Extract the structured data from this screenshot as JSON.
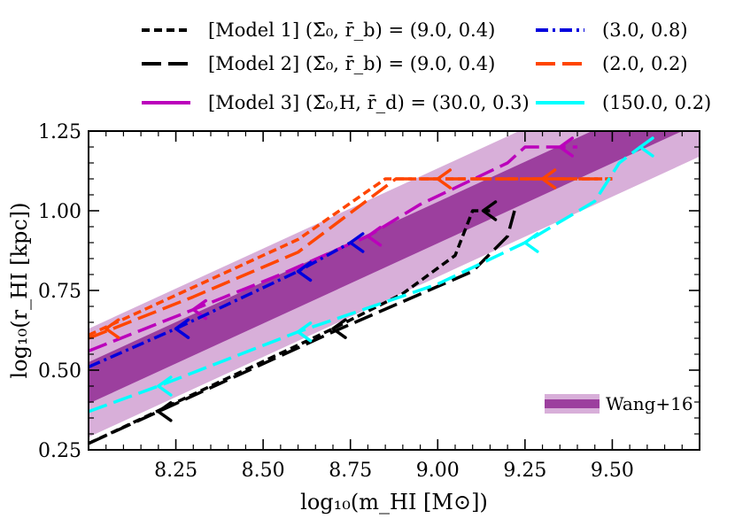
{
  "chart_data": {
    "type": "line",
    "title": "",
    "xlabel": "log₁₀(m_HI [M⊙])",
    "ylabel": "log₁₀(r_HI [kpc])",
    "xlim": [
      8.0,
      9.75
    ],
    "ylim": [
      0.25,
      1.25
    ],
    "x_ticks": [
      "8.25",
      "8.50",
      "8.75",
      "9.00",
      "9.25",
      "9.50"
    ],
    "y_ticks": [
      "0.25",
      "0.50",
      "0.75",
      "1.00",
      "1.25"
    ],
    "grid": false,
    "legend_placement": "top",
    "band": {
      "name": "Wang+16",
      "color_inner": "#9c3f9e",
      "color_outer": "#d8afd9",
      "center": [
        [
          8.0,
          0.46
        ],
        [
          9.75,
          1.34
        ]
      ],
      "inner_half_width": 0.065,
      "outer_half_width": 0.17
    },
    "legend": [
      {
        "label": "[Model 1] (Σ̄₀, r̄_b) = (9.0, 0.4)",
        "color": "#000000",
        "dash": "short"
      },
      {
        "label": "[Model 2] (Σ̄₀, r̄_b) = (9.0, 0.4)",
        "color": "#000000",
        "dash": "long"
      },
      {
        "label": "[Model 3] (Σ̄₀,H, r̄_d) = (30.0, 0.3)",
        "color": "#bb00bb",
        "dash": "solid"
      },
      {
        "label": "(3.0, 0.8)",
        "color": "#0000dd",
        "dash": "dashdot"
      },
      {
        "label": "(2.0, 0.2)",
        "color": "#ff4500",
        "dash": "long"
      },
      {
        "label": "(150.0, 0.2)",
        "color": "#00ffff",
        "dash": "solid"
      }
    ],
    "series": [
      {
        "color": "#000000",
        "dash": "short",
        "x": [
          8.0,
          8.7,
          8.9,
          9.05,
          9.1,
          9.15
        ],
        "y": [
          0.27,
          0.63,
          0.74,
          0.86,
          1.0,
          1.0
        ],
        "arrows": [
          [
            8.7,
            0.63
          ],
          [
            9.13,
            1.0
          ]
        ]
      },
      {
        "color": "#000000",
        "dash": "long",
        "x": [
          8.0,
          8.2,
          8.7,
          9.1,
          9.2,
          9.22
        ],
        "y": [
          0.27,
          0.37,
          0.62,
          0.81,
          0.92,
          1.0
        ],
        "arrows": [
          [
            8.2,
            0.37
          ]
        ]
      },
      {
        "color": "#bb00bb",
        "dash": "long",
        "x": [
          8.0,
          8.3,
          8.55,
          8.8,
          8.95,
          9.2,
          9.25,
          9.4
        ],
        "y": [
          0.56,
          0.69,
          0.8,
          0.92,
          1.02,
          1.15,
          1.2,
          1.2
        ],
        "arrows": [
          [
            8.3,
            0.69
          ],
          [
            8.8,
            0.92
          ],
          [
            9.35,
            1.2
          ]
        ]
      },
      {
        "color": "#0000dd",
        "dash": "dashdot",
        "x": [
          8.0,
          8.25,
          8.6,
          8.75
        ],
        "y": [
          0.51,
          0.63,
          0.81,
          0.9
        ],
        "arrows": [
          [
            8.25,
            0.63
          ],
          [
            8.6,
            0.81
          ],
          [
            8.75,
            0.9
          ]
        ]
      },
      {
        "color": "#ff4500",
        "dash": "short",
        "x": [
          8.0,
          8.3,
          8.6,
          8.85,
          9.25,
          9.5
        ],
        "y": [
          0.61,
          0.76,
          0.91,
          1.1,
          1.1,
          1.1
        ],
        "arrows": [
          [
            8.05,
            0.63
          ],
          [
            9.3,
            1.1
          ]
        ]
      },
      {
        "color": "#ff4500",
        "dash": "long",
        "x": [
          8.0,
          8.3,
          8.6,
          8.88,
          9.1,
          9.5
        ],
        "y": [
          0.6,
          0.73,
          0.87,
          1.1,
          1.1,
          1.1
        ],
        "arrows": [
          [
            9.0,
            1.1
          ]
        ]
      },
      {
        "color": "#00ffff",
        "dash": "long",
        "x": [
          8.0,
          8.2,
          8.6,
          9.0,
          9.25,
          9.45,
          9.52,
          9.58
        ],
        "y": [
          0.37,
          0.45,
          0.62,
          0.77,
          0.9,
          1.03,
          1.15,
          1.2
        ],
        "arrows": [
          [
            8.2,
            0.45
          ],
          [
            8.6,
            0.62
          ],
          [
            9.25,
            0.9
          ],
          [
            9.58,
            1.2
          ]
        ]
      }
    ]
  }
}
